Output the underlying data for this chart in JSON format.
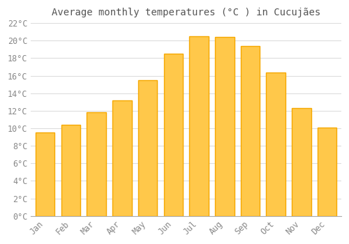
{
  "title": "Average monthly temperatures (°C ) in Cucujães",
  "months": [
    "Jan",
    "Feb",
    "Mar",
    "Apr",
    "May",
    "Jun",
    "Jul",
    "Aug",
    "Sep",
    "Oct",
    "Nov",
    "Dec"
  ],
  "values": [
    9.5,
    10.4,
    11.8,
    13.2,
    15.5,
    18.5,
    20.5,
    20.4,
    19.4,
    16.4,
    12.3,
    10.1
  ],
  "bar_color_inner": "#FFC84A",
  "bar_color_outer": "#F5A800",
  "background_color": "#FFFFFF",
  "grid_color": "#DDDDDD",
  "text_color": "#888888",
  "ylim": [
    0,
    22
  ],
  "ytick_step": 2,
  "title_fontsize": 10,
  "tick_fontsize": 8.5
}
